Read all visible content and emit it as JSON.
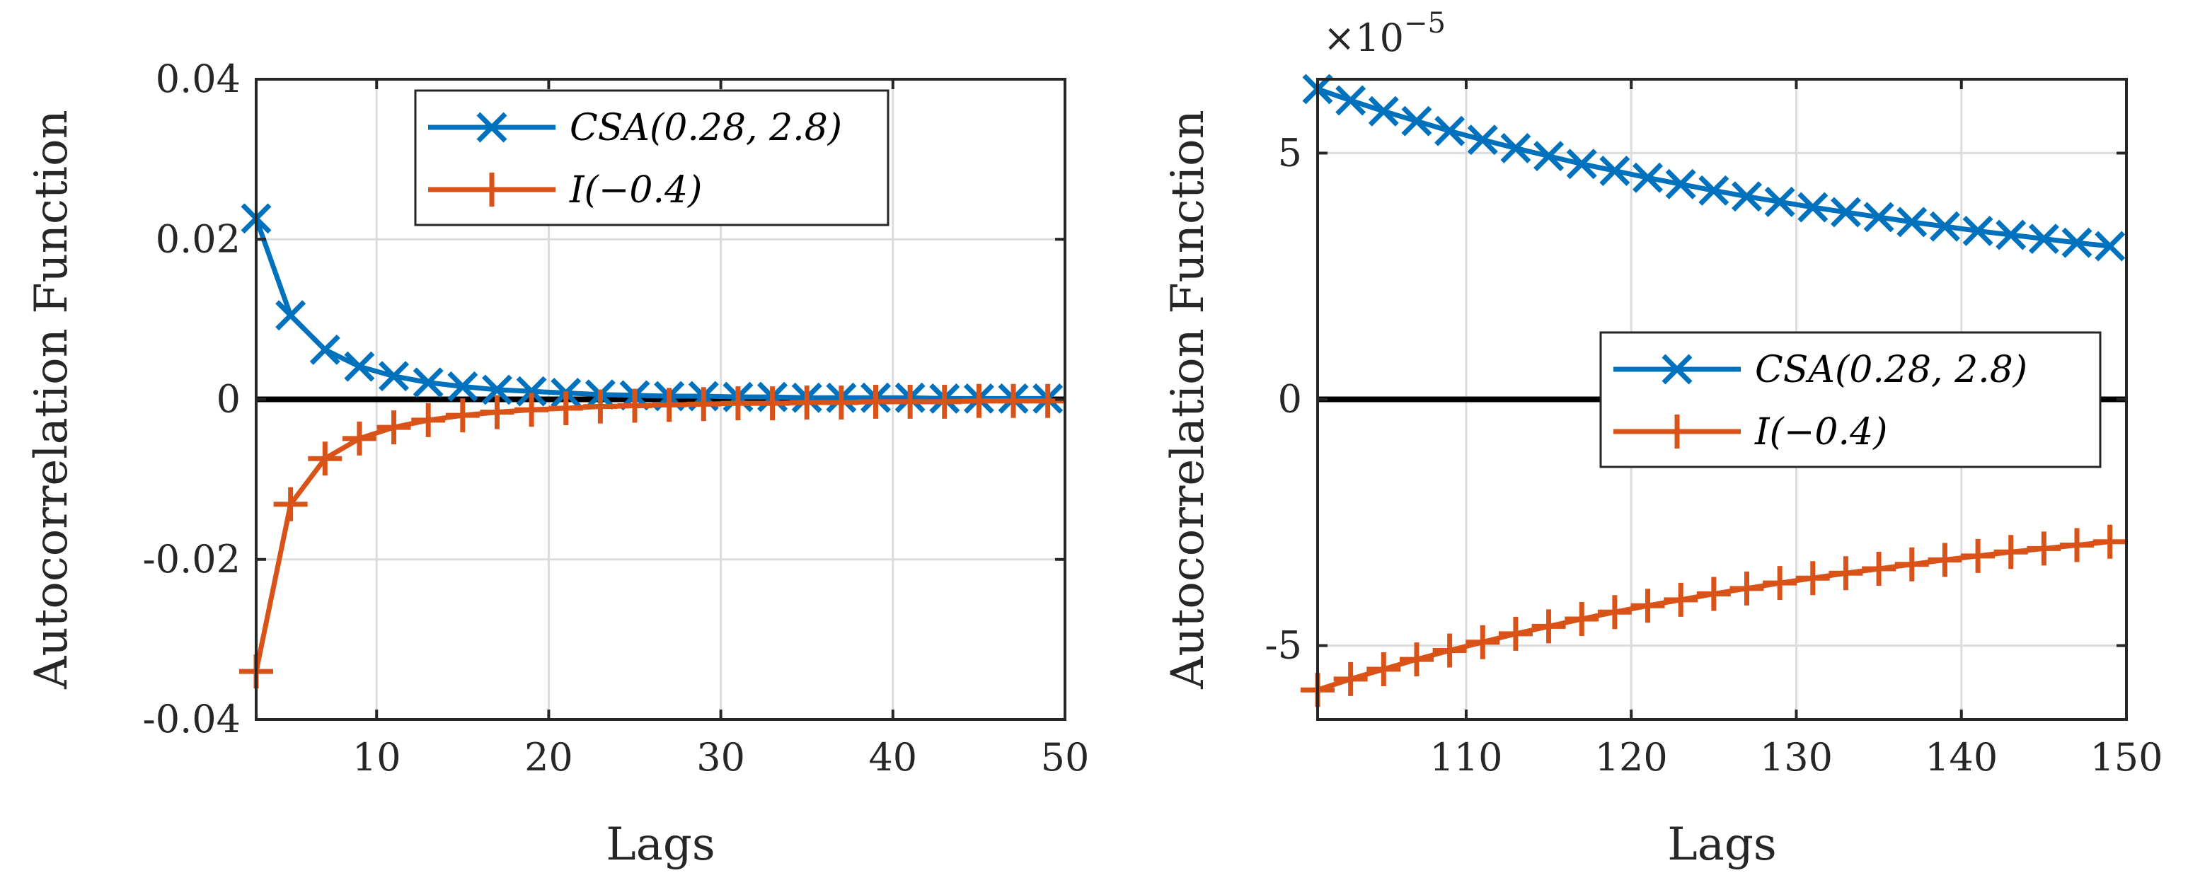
{
  "chart_data": [
    {
      "type": "line",
      "xlabel": "Lags",
      "ylabel": "Autocorrelation Function",
      "xlim": [
        3,
        50
      ],
      "ylim": [
        -0.04,
        0.04
      ],
      "xticks": [
        10,
        20,
        30,
        40,
        50
      ],
      "xtick_labels": [
        "10",
        "20",
        "30",
        "40",
        "50"
      ],
      "yticks": [
        -0.04,
        -0.02,
        0,
        0.02,
        0.04
      ],
      "ytick_labels": [
        "-0.04",
        "-0.02",
        "0",
        "0.02",
        "0.04"
      ],
      "grid": true,
      "legend_position": "top",
      "zero_line": 0,
      "series": [
        {
          "name": "CSA(0.28, 2.8)",
          "marker": "x",
          "color": "#0072BD",
          "x": [
            3,
            5,
            7,
            9,
            11,
            13,
            15,
            17,
            19,
            21,
            23,
            25,
            27,
            29,
            31,
            33,
            35,
            37,
            39,
            41,
            43,
            45,
            47,
            49
          ],
          "values": [
            0.0226,
            0.0105,
            0.0062,
            0.0041,
            0.0029,
            0.0021,
            0.0016,
            0.0012,
            0.001,
            0.0008,
            0.0006,
            0.0005,
            0.0004,
            0.0004,
            0.0003,
            0.0003,
            0.0002,
            0.0002,
            0.0002,
            0.0002,
            0.0001,
            0.0001,
            0.0001,
            0.0001
          ]
        },
        {
          "name": "I(−0.4)",
          "marker": "+",
          "color": "#D95319",
          "x": [
            3,
            5,
            7,
            9,
            11,
            13,
            15,
            17,
            19,
            21,
            23,
            25,
            27,
            29,
            31,
            33,
            35,
            37,
            39,
            41,
            43,
            45,
            47,
            49
          ],
          "values": [
            -0.034,
            -0.0131,
            -0.0074,
            -0.0049,
            -0.0035,
            -0.0026,
            -0.002,
            -0.0016,
            -0.0013,
            -0.0011,
            -0.0009,
            -0.0008,
            -0.0007,
            -0.0006,
            -0.0005,
            -0.0005,
            -0.0004,
            -0.0004,
            -0.0003,
            -0.0003,
            -0.0003,
            -0.0002,
            -0.0002,
            -0.0002
          ]
        }
      ]
    },
    {
      "type": "line",
      "xlabel": "Lags",
      "ylabel": "Autocorrelation Function",
      "xlim": [
        101,
        150
      ],
      "ylim": [
        -6.5,
        6.5
      ],
      "y_exponent_label": "×10",
      "y_exponent": "−5",
      "xticks": [
        110,
        120,
        130,
        140,
        150
      ],
      "xtick_labels": [
        "110",
        "120",
        "130",
        "140",
        "150"
      ],
      "yticks": [
        -5,
        0,
        5
      ],
      "ytick_labels": [
        "-5",
        "0",
        "5"
      ],
      "grid": true,
      "legend_position": "middle-right",
      "zero_line": 0,
      "series": [
        {
          "name": "CSA(0.28, 2.8)",
          "marker": "x",
          "color": "#0072BD",
          "x": [
            101,
            103,
            105,
            107,
            109,
            111,
            113,
            115,
            117,
            119,
            121,
            123,
            125,
            127,
            129,
            131,
            133,
            135,
            137,
            139,
            141,
            143,
            145,
            147,
            149
          ],
          "values": [
            6.3,
            6.07,
            5.85,
            5.65,
            5.45,
            5.27,
            5.1,
            4.94,
            4.78,
            4.64,
            4.5,
            4.37,
            4.24,
            4.12,
            4.01,
            3.9,
            3.8,
            3.7,
            3.6,
            3.51,
            3.42,
            3.34,
            3.26,
            3.18,
            3.11
          ]
        },
        {
          "name": "I(−0.4)",
          "marker": "+",
          "color": "#D95319",
          "x": [
            101,
            103,
            105,
            107,
            109,
            111,
            113,
            115,
            117,
            119,
            121,
            123,
            125,
            127,
            129,
            131,
            133,
            135,
            137,
            139,
            141,
            143,
            145,
            147,
            149
          ],
          "values": [
            -5.9,
            -5.68,
            -5.48,
            -5.28,
            -5.1,
            -4.93,
            -4.76,
            -4.61,
            -4.46,
            -4.32,
            -4.19,
            -4.07,
            -3.95,
            -3.84,
            -3.73,
            -3.63,
            -3.53,
            -3.44,
            -3.35,
            -3.26,
            -3.18,
            -3.1,
            -3.03,
            -2.96,
            -2.89
          ]
        }
      ]
    }
  ]
}
